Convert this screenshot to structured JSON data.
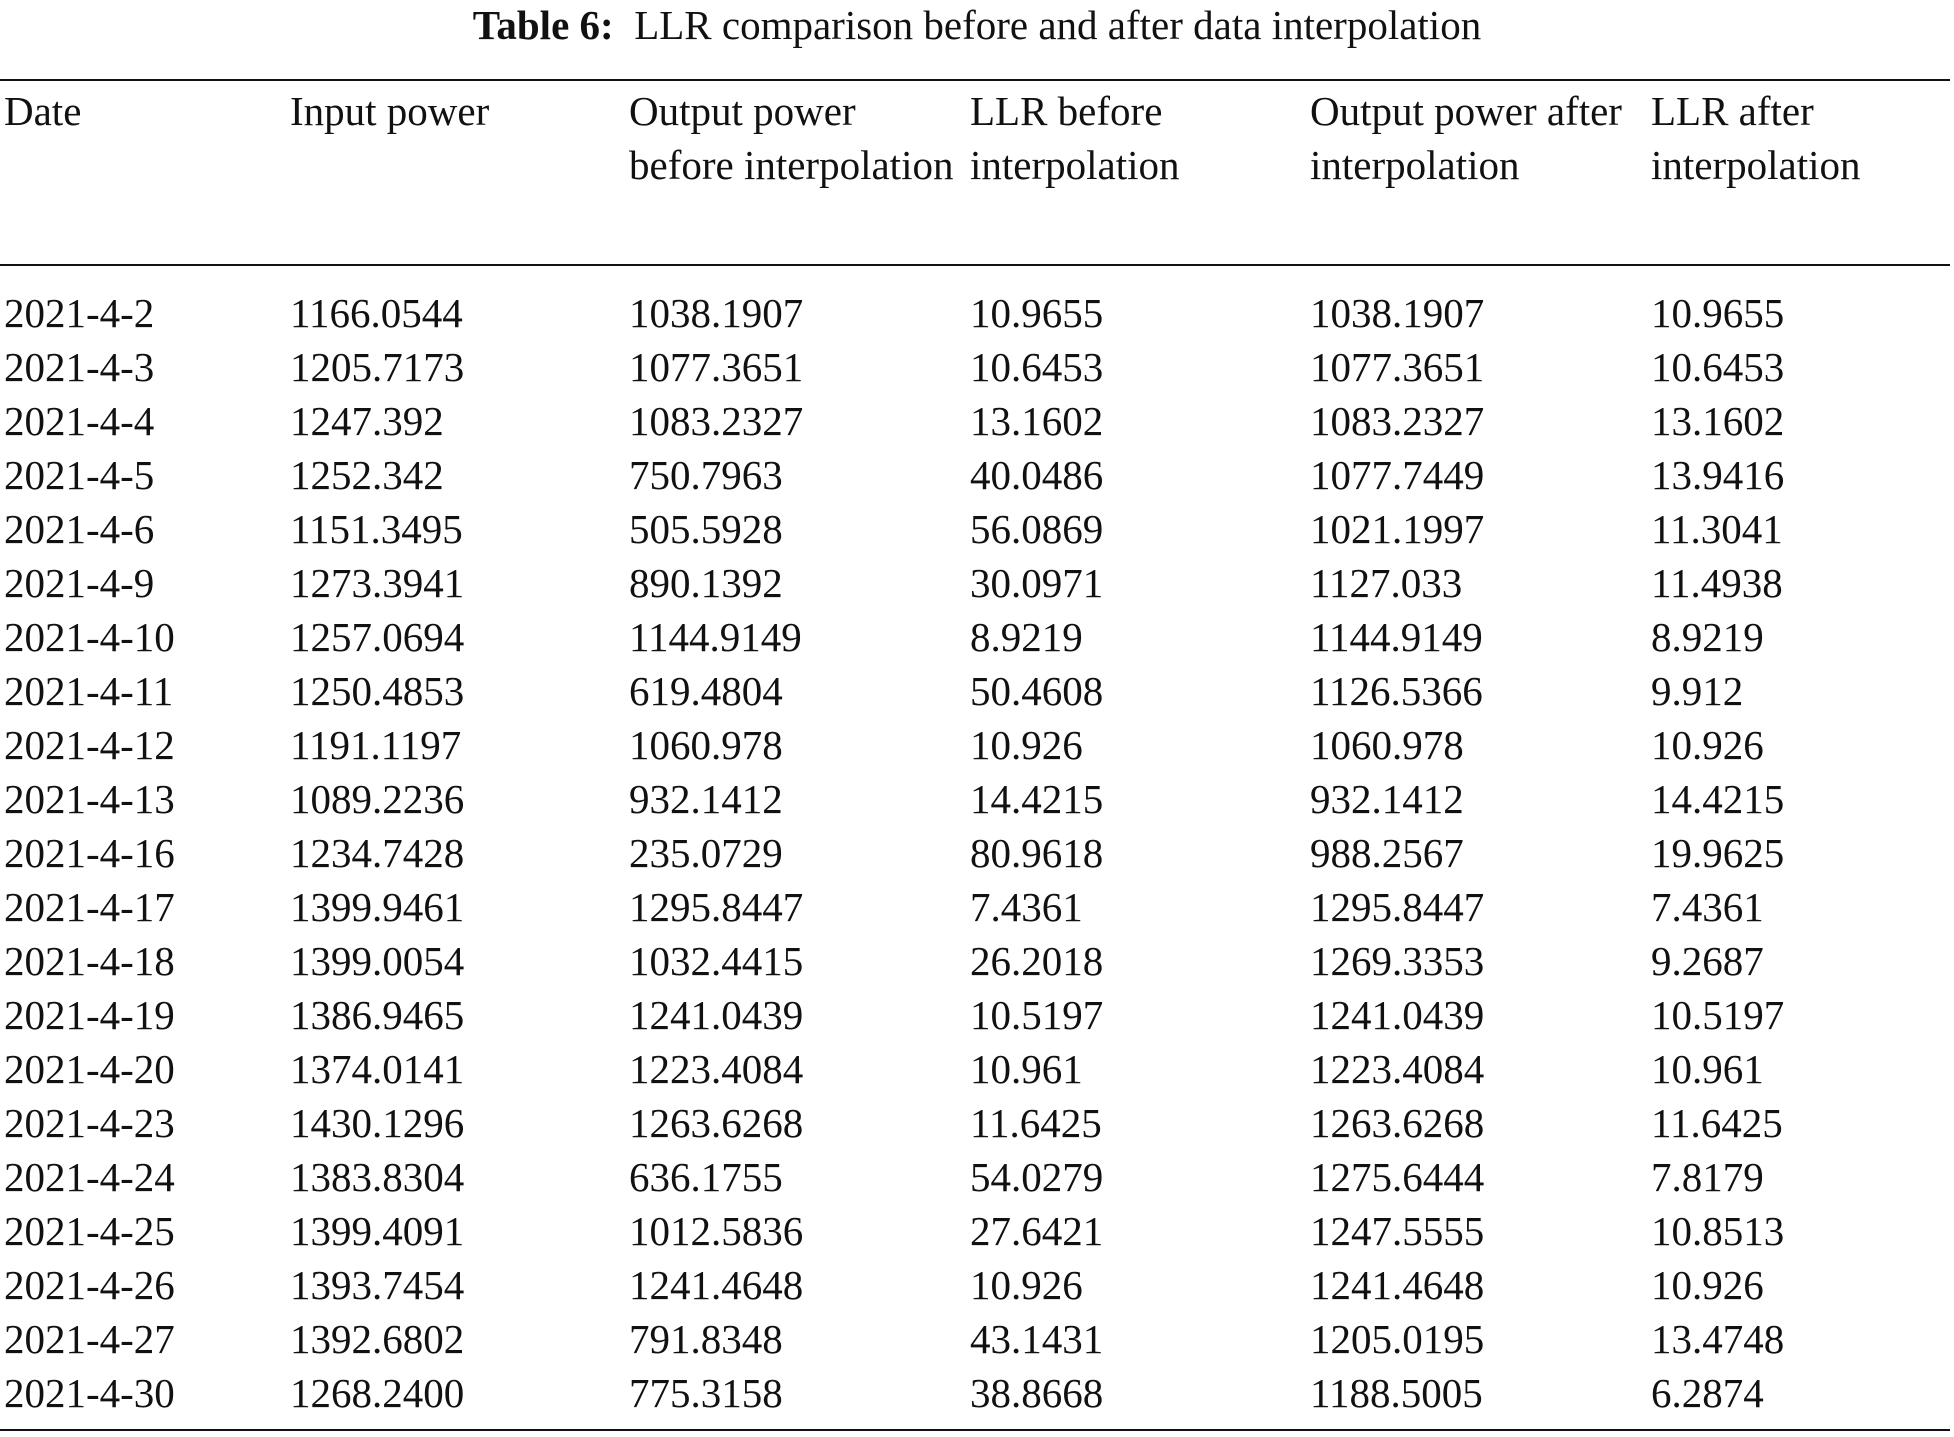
{
  "caption": {
    "label": "Table 6:",
    "text": "LLR comparison before and after data interpolation"
  },
  "table": {
    "headers": [
      "Date",
      "Input power",
      "Output power before interpolation",
      "LLR before interpolation",
      "Output power after interpolation",
      "LLR after interpolation"
    ],
    "rows": [
      [
        "2021-4-2",
        "1166.0544",
        "1038.1907",
        "10.9655",
        "1038.1907",
        "10.9655"
      ],
      [
        "2021-4-3",
        "1205.7173",
        "1077.3651",
        "10.6453",
        "1077.3651",
        "10.6453"
      ],
      [
        "2021-4-4",
        "1247.392",
        "1083.2327",
        "13.1602",
        "1083.2327",
        "13.1602"
      ],
      [
        "2021-4-5",
        "1252.342",
        "750.7963",
        "40.0486",
        "1077.7449",
        "13.9416"
      ],
      [
        "2021-4-6",
        "1151.3495",
        "505.5928",
        "56.0869",
        "1021.1997",
        "11.3041"
      ],
      [
        "2021-4-9",
        "1273.3941",
        "890.1392",
        "30.0971",
        "1127.033",
        "11.4938"
      ],
      [
        "2021-4-10",
        "1257.0694",
        "1144.9149",
        "8.9219",
        "1144.9149",
        "8.9219"
      ],
      [
        "2021-4-11",
        "1250.4853",
        "619.4804",
        "50.4608",
        "1126.5366",
        "9.912"
      ],
      [
        "2021-4-12",
        "1191.1197",
        "1060.978",
        "10.926",
        "1060.978",
        "10.926"
      ],
      [
        "2021-4-13",
        "1089.2236",
        "932.1412",
        "14.4215",
        "932.1412",
        "14.4215"
      ],
      [
        "2021-4-16",
        "1234.7428",
        "235.0729",
        "80.9618",
        "988.2567",
        "19.9625"
      ],
      [
        "2021-4-17",
        "1399.9461",
        "1295.8447",
        "7.4361",
        "1295.8447",
        "7.4361"
      ],
      [
        "2021-4-18",
        "1399.0054",
        "1032.4415",
        "26.2018",
        "1269.3353",
        "9.2687"
      ],
      [
        "2021-4-19",
        "1386.9465",
        "1241.0439",
        "10.5197",
        "1241.0439",
        "10.5197"
      ],
      [
        "2021-4-20",
        "1374.0141",
        "1223.4084",
        "10.961",
        "1223.4084",
        "10.961"
      ],
      [
        "2021-4-23",
        "1430.1296",
        "1263.6268",
        "11.6425",
        "1263.6268",
        "11.6425"
      ],
      [
        "2021-4-24",
        "1383.8304",
        "636.1755",
        "54.0279",
        "1275.6444",
        "7.8179"
      ],
      [
        "2021-4-25",
        "1399.4091",
        "1012.5836",
        "27.6421",
        "1247.5555",
        "10.8513"
      ],
      [
        "2021-4-26",
        "1393.7454",
        "1241.4648",
        "10.926",
        "1241.4648",
        "10.926"
      ],
      [
        "2021-4-27",
        "1392.6802",
        "791.8348",
        "43.1431",
        "1205.0195",
        "13.4748"
      ],
      [
        "2021-4-30",
        "1268.2400",
        "775.3158",
        "38.8668",
        "1188.5005",
        "6.2874"
      ]
    ]
  }
}
